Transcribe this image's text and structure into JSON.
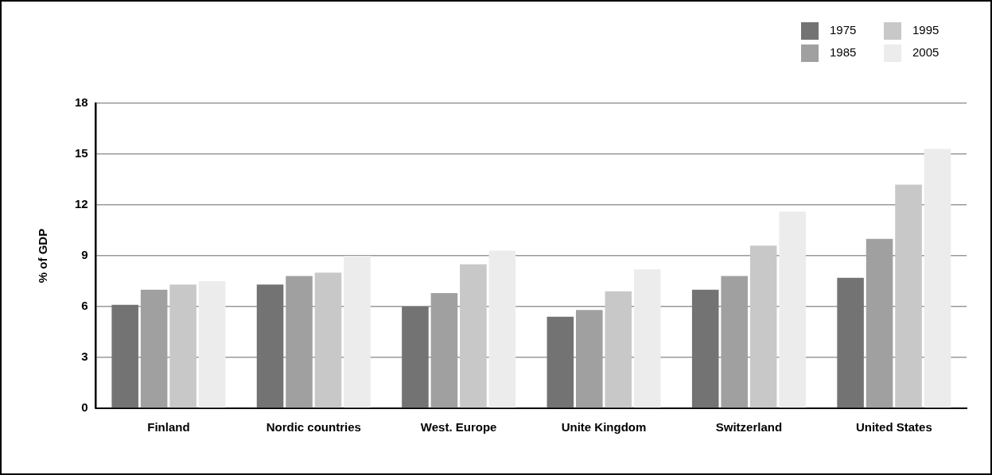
{
  "chart_data": {
    "type": "bar",
    "ylabel": "% of GDP",
    "categories": [
      "Finland",
      "Nordic countries",
      "West. Europe",
      "Unite Kingdom",
      "Switzerland",
      "United States"
    ],
    "series": [
      {
        "name": "1975",
        "color": "#737373",
        "values": [
          6.1,
          7.3,
          6.0,
          5.4,
          7.0,
          7.7
        ]
      },
      {
        "name": "1985",
        "color": "#a0a0a0",
        "values": [
          7.0,
          7.8,
          6.8,
          5.8,
          7.8,
          10.0
        ]
      },
      {
        "name": "1995",
        "color": "#c8c8c8",
        "values": [
          7.3,
          8.0,
          8.5,
          6.9,
          9.6,
          13.2
        ]
      },
      {
        "name": "2005",
        "color": "#ececec",
        "values": [
          7.5,
          9.0,
          9.3,
          8.2,
          11.6,
          15.3
        ]
      }
    ],
    "ylim": [
      0,
      18
    ],
    "yticks": [
      0,
      3,
      6,
      9,
      12,
      15,
      18
    ],
    "grid": "y",
    "legend": "top right"
  }
}
